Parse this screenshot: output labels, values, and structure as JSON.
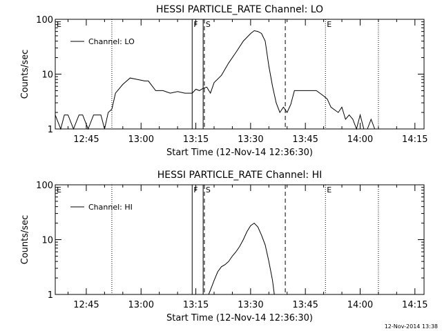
{
  "footer": {
    "timestamp": "12-Nov-2014 13:38"
  },
  "chart_data": [
    {
      "type": "line",
      "title": "HESSI PARTICLE_RATE Channel: LO",
      "xlabel": "Start Time (12-Nov-14 12:36:30)",
      "ylabel": "Counts/sec",
      "y_scale": "log",
      "ylim": [
        1,
        100
      ],
      "xlim": [
        "12:36:30",
        "14:17:30"
      ],
      "x_ticks": [
        "12:45",
        "13:00",
        "13:15",
        "13:30",
        "13:45",
        "14:00",
        "14:15"
      ],
      "y_ticks": [
        "1",
        "10",
        "100"
      ],
      "legend": {
        "position": "top-left",
        "entries": [
          "Channel: LO"
        ]
      },
      "markers": [
        {
          "label": "E",
          "time": "12:36:30",
          "style": "dotted"
        },
        {
          "label": "",
          "time": "12:52:00",
          "style": "dotted"
        },
        {
          "label": "F",
          "time": "13:14:00",
          "style": "solid"
        },
        {
          "label": "",
          "time": "13:17:00",
          "style": "solid"
        },
        {
          "label": "S",
          "time": "13:17:20",
          "style": "dashed"
        },
        {
          "label": "",
          "time": "13:39:30",
          "style": "dashed"
        },
        {
          "label": "E",
          "time": "13:50:30",
          "style": "dotted"
        },
        {
          "label": "",
          "time": "14:05:00",
          "style": "dotted"
        }
      ],
      "series": [
        {
          "name": "Channel: LO",
          "x": [
            "12:36:30",
            "12:38:00",
            "12:39:00",
            "12:40:00",
            "12:41:30",
            "12:43:00",
            "12:44:00",
            "12:45:30",
            "12:47:00",
            "12:48:00",
            "12:49:00",
            "12:50:00",
            "12:51:00",
            "12:52:00",
            "12:53:00",
            "12:55:00",
            "12:57:00",
            "12:59:00",
            "13:01:00",
            "13:02:00",
            "13:04:00",
            "13:06:00",
            "13:08:00",
            "13:10:00",
            "13:12:00",
            "13:14:00",
            "13:15:00",
            "13:16:00",
            "13:17:00",
            "13:18:00",
            "13:19:00",
            "13:20:00",
            "13:22:00",
            "13:24:00",
            "13:26:00",
            "13:28:00",
            "13:30:00",
            "13:31:00",
            "13:32:00",
            "13:33:00",
            "13:34:00",
            "13:35:00",
            "13:36:00",
            "13:37:00",
            "13:38:00",
            "13:39:00",
            "13:40:00",
            "13:41:00",
            "13:42:00",
            "13:44:00",
            "13:46:00",
            "13:48:00",
            "13:50:00",
            "13:51:00",
            "13:52:00",
            "13:54:00",
            "13:55:00",
            "13:56:00",
            "13:57:00",
            "13:58:00",
            "13:59:00",
            "14:00:00",
            "14:01:00",
            "14:02:00",
            "14:03:00",
            "14:04:00",
            "14:05:00"
          ],
          "values": [
            1.8,
            1,
            1.8,
            1.8,
            1,
            1.8,
            1.8,
            1,
            1.8,
            1.8,
            1.8,
            1,
            2,
            2.3,
            4.5,
            6.5,
            8.5,
            8.0,
            7.5,
            7.5,
            5,
            5,
            4.5,
            4.8,
            4.5,
            4.5,
            5.3,
            5,
            5.5,
            5.8,
            4.5,
            7,
            9.5,
            16,
            25,
            40,
            55,
            62,
            60,
            55,
            40,
            14,
            6,
            3,
            2,
            2.5,
            2,
            2.8,
            5,
            5,
            5,
            5,
            4,
            3.5,
            2.5,
            2,
            2.5,
            1.5,
            1.8,
            1.5,
            1,
            1.8,
            1,
            1,
            1.5,
            1,
            1
          ]
        }
      ]
    },
    {
      "type": "line",
      "title": "HESSI PARTICLE_RATE Channel: HI",
      "xlabel": "Start Time (12-Nov-14 12:36:30)",
      "ylabel": "Counts/sec",
      "y_scale": "log",
      "ylim": [
        1,
        100
      ],
      "xlim": [
        "12:36:30",
        "14:17:30"
      ],
      "x_ticks": [
        "12:45",
        "13:00",
        "13:15",
        "13:30",
        "13:45",
        "14:00",
        "14:15"
      ],
      "y_ticks": [
        "1",
        "10",
        "100"
      ],
      "legend": {
        "position": "top-left",
        "entries": [
          "Channel: HI"
        ]
      },
      "markers": [
        {
          "label": "E",
          "time": "12:36:30",
          "style": "dotted"
        },
        {
          "label": "",
          "time": "12:52:00",
          "style": "dotted"
        },
        {
          "label": "F",
          "time": "13:14:00",
          "style": "solid"
        },
        {
          "label": "",
          "time": "13:17:00",
          "style": "solid"
        },
        {
          "label": "S",
          "time": "13:17:20",
          "style": "dashed"
        },
        {
          "label": "",
          "time": "13:39:30",
          "style": "dashed"
        },
        {
          "label": "E",
          "time": "13:50:30",
          "style": "dotted"
        },
        {
          "label": "",
          "time": "14:05:00",
          "style": "dotted"
        }
      ],
      "series": [
        {
          "name": "Channel: HI",
          "x": [
            "13:18:30",
            "13:19:00",
            "13:20:00",
            "13:21:00",
            "13:22:00",
            "13:23:00",
            "13:24:00",
            "13:25:00",
            "13:26:00",
            "13:27:00",
            "13:28:00",
            "13:29:00",
            "13:30:00",
            "13:31:00",
            "13:32:00",
            "13:33:00",
            "13:34:00",
            "13:35:00",
            "13:36:00",
            "13:36:30"
          ],
          "values": [
            1,
            1.2,
            1.8,
            2.6,
            3.2,
            3.5,
            4,
            5,
            6,
            7.5,
            10,
            14,
            18,
            20,
            17,
            12,
            8,
            4,
            1.8,
            1
          ]
        }
      ]
    }
  ]
}
